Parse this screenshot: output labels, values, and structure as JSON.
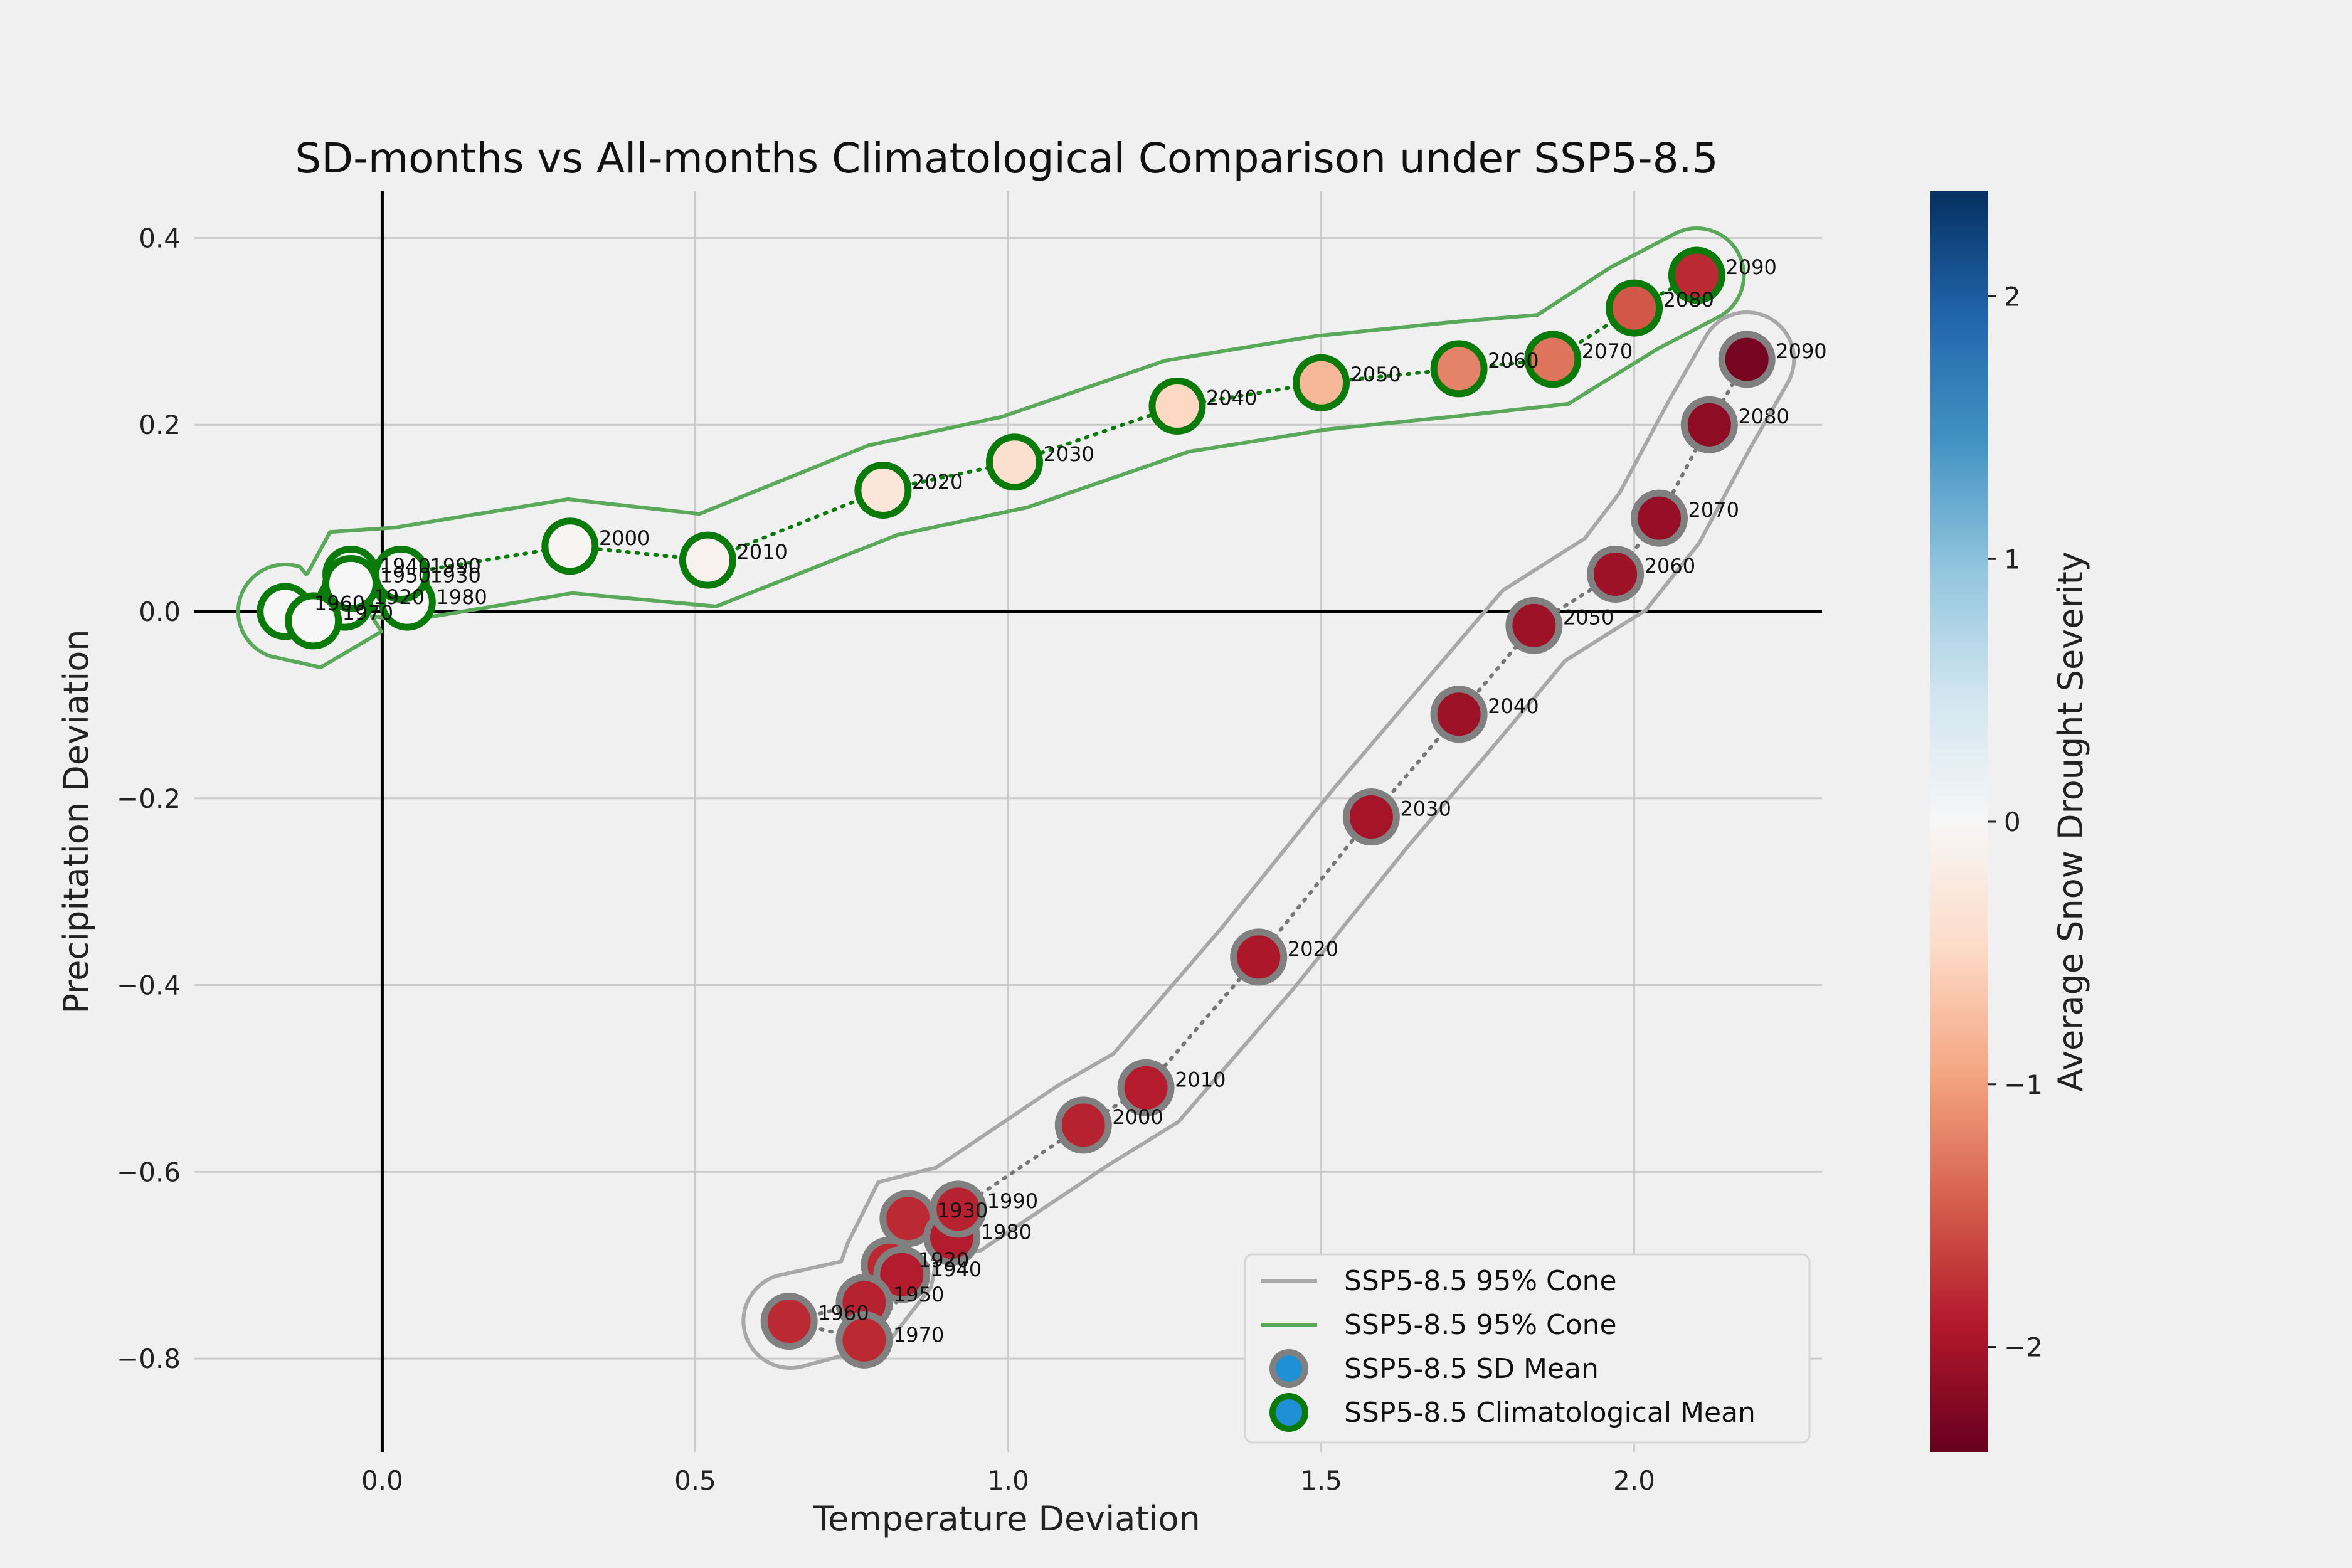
{
  "chart_data": {
    "type": "scatter",
    "title": "SD-months vs All-months Climatological Comparison under SSP5-8.5",
    "xlabel": "Temperature Deviation",
    "ylabel": "Precipitation Deviation",
    "xlim": [
      -0.3,
      2.3
    ],
    "ylim": [
      -0.9,
      0.45
    ],
    "xticks": [
      0.0,
      0.5,
      1.0,
      1.5,
      2.0
    ],
    "yticks": [
      -0.8,
      -0.6,
      -0.4,
      -0.2,
      0.0,
      0.2,
      0.4
    ],
    "xtick_labels": [
      "0.0",
      "0.5",
      "1.0",
      "1.5",
      "2.0"
    ],
    "ytick_labels": [
      "−0.8",
      "−0.6",
      "−0.4",
      "−0.2",
      "0.0",
      "0.2",
      "0.4"
    ],
    "grid": true,
    "colorbar": {
      "label": "Average Snow Drought Severity",
      "min": -2.4,
      "max": 2.4,
      "ticks": [
        -2,
        -1,
        0,
        1,
        2
      ],
      "tick_labels": [
        "−2",
        "−1",
        "0",
        "1",
        "2"
      ],
      "colormap": "RdBu"
    },
    "legend": {
      "placement": "lower-right",
      "entries": [
        {
          "label": "SSP5-8.5 95% Cone",
          "kind": "line",
          "color": "#a8a8a8"
        },
        {
          "label": "SSP5-8.5 95% Cone",
          "kind": "line",
          "color": "#5aa85a"
        },
        {
          "label": "SSP5-8.5 SD Mean",
          "kind": "marker",
          "edge": "#808080",
          "face": "#1f8fd6"
        },
        {
          "label": "SSP5-8.5 Climatological Mean",
          "kind": "marker",
          "edge": "#0a7a0a",
          "face": "#1f8fd6"
        }
      ]
    },
    "series": [
      {
        "kind": "sd_mean",
        "edge_color": "#808080",
        "cone_color": "#a8a8a8",
        "points": [
          {
            "label": "1920",
            "x": 0.81,
            "y": -0.7,
            "severity": -1.8
          },
          {
            "label": "1930",
            "x": 0.84,
            "y": -0.65,
            "severity": -1.8
          },
          {
            "label": "1940",
            "x": 0.83,
            "y": -0.71,
            "severity": -1.9
          },
          {
            "label": "1950",
            "x": 0.77,
            "y": -0.74,
            "severity": -1.85
          },
          {
            "label": "1960",
            "x": 0.65,
            "y": -0.76,
            "severity": -1.8
          },
          {
            "label": "1970",
            "x": 0.77,
            "y": -0.78,
            "severity": -1.8
          },
          {
            "label": "1980",
            "x": 0.91,
            "y": -0.67,
            "severity": -1.9
          },
          {
            "label": "1990",
            "x": 0.92,
            "y": -0.64,
            "severity": -1.85
          },
          {
            "label": "2000",
            "x": 1.12,
            "y": -0.55,
            "severity": -1.85
          },
          {
            "label": "2010",
            "x": 1.22,
            "y": -0.51,
            "severity": -1.9
          },
          {
            "label": "2020",
            "x": 1.4,
            "y": -0.37,
            "severity": -1.95
          },
          {
            "label": "2030",
            "x": 1.58,
            "y": -0.22,
            "severity": -2.0
          },
          {
            "label": "2040",
            "x": 1.72,
            "y": -0.11,
            "severity": -2.05
          },
          {
            "label": "2050",
            "x": 1.84,
            "y": -0.015,
            "severity": -2.05
          },
          {
            "label": "2060",
            "x": 1.97,
            "y": 0.04,
            "severity": -2.05
          },
          {
            "label": "2070",
            "x": 2.04,
            "y": 0.1,
            "severity": -2.1
          },
          {
            "label": "2080",
            "x": 2.12,
            "y": 0.2,
            "severity": -2.15
          },
          {
            "label": "2090",
            "x": 2.18,
            "y": 0.27,
            "severity": -2.3
          }
        ]
      },
      {
        "kind": "climatological_mean",
        "edge_color": "#0a7a0a",
        "cone_color": "#5aa85a",
        "points": [
          {
            "label": "1920",
            "x": -0.06,
            "y": 0.01,
            "severity": 0.0
          },
          {
            "label": "1930",
            "x": 0.03,
            "y": 0.03,
            "severity": 0.0
          },
          {
            "label": "1940",
            "x": -0.05,
            "y": 0.04,
            "severity": 0.0
          },
          {
            "label": "1950",
            "x": -0.05,
            "y": 0.03,
            "severity": 0.0
          },
          {
            "label": "1960",
            "x": -0.155,
            "y": 0.0,
            "severity": 0.0
          },
          {
            "label": "1970",
            "x": -0.11,
            "y": -0.01,
            "severity": 0.0
          },
          {
            "label": "1980",
            "x": 0.04,
            "y": 0.01,
            "severity": 0.0
          },
          {
            "label": "1990",
            "x": 0.03,
            "y": 0.04,
            "severity": 0.0
          },
          {
            "label": "2000",
            "x": 0.3,
            "y": 0.07,
            "severity": -0.05
          },
          {
            "label": "2010",
            "x": 0.52,
            "y": 0.055,
            "severity": -0.1
          },
          {
            "label": "2020",
            "x": 0.8,
            "y": 0.13,
            "severity": -0.3
          },
          {
            "label": "2030",
            "x": 1.01,
            "y": 0.16,
            "severity": -0.4
          },
          {
            "label": "2040",
            "x": 1.27,
            "y": 0.22,
            "severity": -0.5
          },
          {
            "label": "2050",
            "x": 1.5,
            "y": 0.245,
            "severity": -0.8
          },
          {
            "label": "2060",
            "x": 1.72,
            "y": 0.26,
            "severity": -1.2
          },
          {
            "label": "2070",
            "x": 1.87,
            "y": 0.27,
            "severity": -1.3
          },
          {
            "label": "2080",
            "x": 2.0,
            "y": 0.325,
            "severity": -1.5
          },
          {
            "label": "2090",
            "x": 2.1,
            "y": 0.36,
            "severity": -1.8
          }
        ]
      }
    ],
    "point_label_offsets": {
      "sd_mean": {
        "1920": [
          0.02,
          -0.005
        ],
        "1930": [
          0.02,
          0.0
        ],
        "1940": [
          0.02,
          -0.005
        ],
        "1950": [
          0.02,
          0.0
        ],
        "1960": [
          0.02,
          0.0
        ],
        "1970": [
          0.02,
          -0.005
        ],
        "1980": [
          0.02,
          -0.005
        ],
        "1990": [
          0.02,
          0.0
        ]
      },
      "climatological_mean": {
        "1920": [
          0.02,
          -0.005
        ],
        "1930": [
          0.01,
          0.0
        ],
        "1940": [
          0.0,
          0.0
        ],
        "1950": [
          0.0,
          0.0
        ],
        "1960": [
          0.0,
          0.0
        ],
        "1970": [
          0.0,
          0.0
        ],
        "1980": [
          0.02,
          -0.005
        ],
        "1990": [
          0.02,
          0.0
        ]
      }
    }
  }
}
